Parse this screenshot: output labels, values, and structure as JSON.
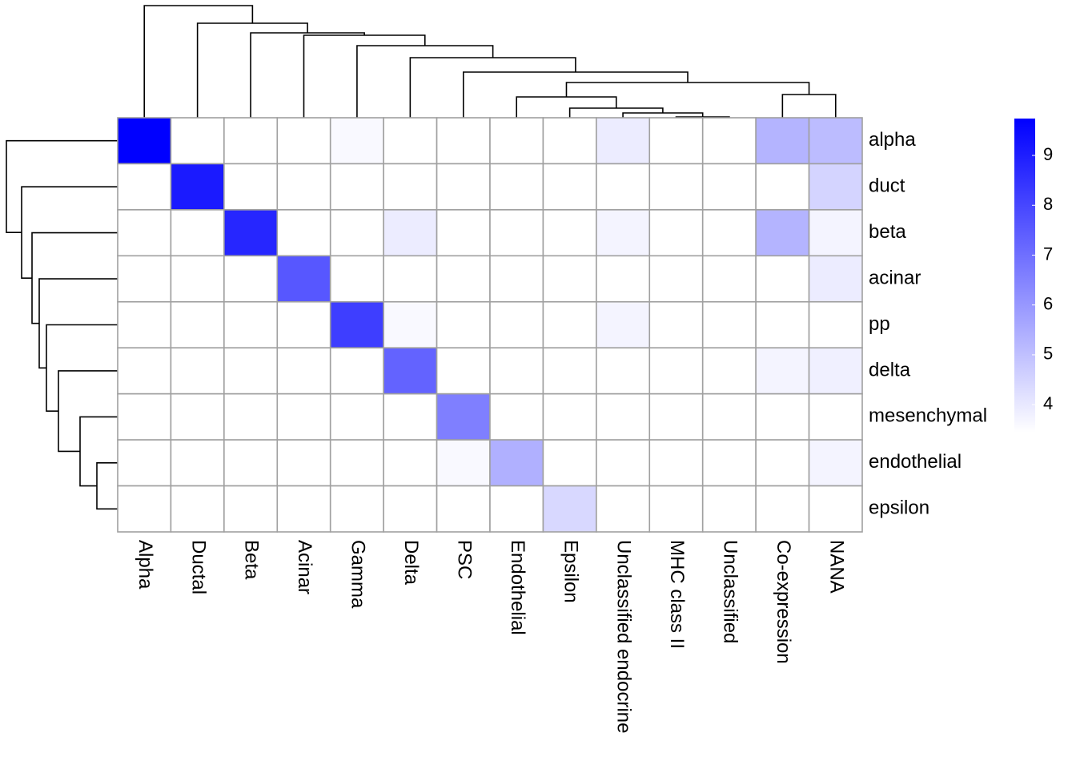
{
  "chart_data": {
    "type": "heatmap",
    "rows": [
      "alpha",
      "duct",
      "beta",
      "acinar",
      "pp",
      "delta",
      "mesenchymal",
      "endothelial",
      "epsilon"
    ],
    "columns": [
      "Alpha",
      "Ductal",
      "Beta",
      "Acinar",
      "Gamma",
      "Delta",
      "PSC",
      "Endothelial",
      "Epsilon",
      "Unclassified endocrine",
      "MHC class II",
      "Unclassified",
      "Co-expression",
      "NANA"
    ],
    "values": [
      [
        9.74,
        3.44,
        3.44,
        3.44,
        3.6,
        3.44,
        3.44,
        3.44,
        3.44,
        3.9,
        3.44,
        3.44,
        5.3,
        5.1
      ],
      [
        3.44,
        9.1,
        3.44,
        3.44,
        3.44,
        3.44,
        3.44,
        3.44,
        3.44,
        3.44,
        3.44,
        3.44,
        3.44,
        4.5
      ],
      [
        3.44,
        3.44,
        8.8,
        3.44,
        3.44,
        3.9,
        3.44,
        3.44,
        3.44,
        3.7,
        3.44,
        3.44,
        5.3,
        3.7
      ],
      [
        3.44,
        3.44,
        3.44,
        7.6,
        3.44,
        3.44,
        3.44,
        3.44,
        3.44,
        3.44,
        3.44,
        3.44,
        3.44,
        3.9
      ],
      [
        3.44,
        3.44,
        3.44,
        3.44,
        8.2,
        3.6,
        3.44,
        3.44,
        3.44,
        3.7,
        3.44,
        3.44,
        3.44,
        3.44
      ],
      [
        3.44,
        3.44,
        3.44,
        3.44,
        3.44,
        7.3,
        3.44,
        3.44,
        3.44,
        3.44,
        3.44,
        3.44,
        3.7,
        3.8
      ],
      [
        3.44,
        3.44,
        3.44,
        3.44,
        3.44,
        3.44,
        6.6,
        3.44,
        3.44,
        3.44,
        3.44,
        3.44,
        3.44,
        3.44
      ],
      [
        3.44,
        3.44,
        3.44,
        3.44,
        3.44,
        3.44,
        3.6,
        5.4,
        3.44,
        3.44,
        3.44,
        3.44,
        3.44,
        3.7
      ],
      [
        3.44,
        3.44,
        3.44,
        3.44,
        3.44,
        3.44,
        3.44,
        3.44,
        4.4,
        3.44,
        3.44,
        3.44,
        3.44,
        3.44
      ]
    ],
    "zlim": [
      3.44,
      9.74
    ],
    "zticks": [
      4,
      5,
      6,
      7,
      8,
      9
    ],
    "colors": [
      "#ffffff",
      "#0000ff"
    ]
  }
}
